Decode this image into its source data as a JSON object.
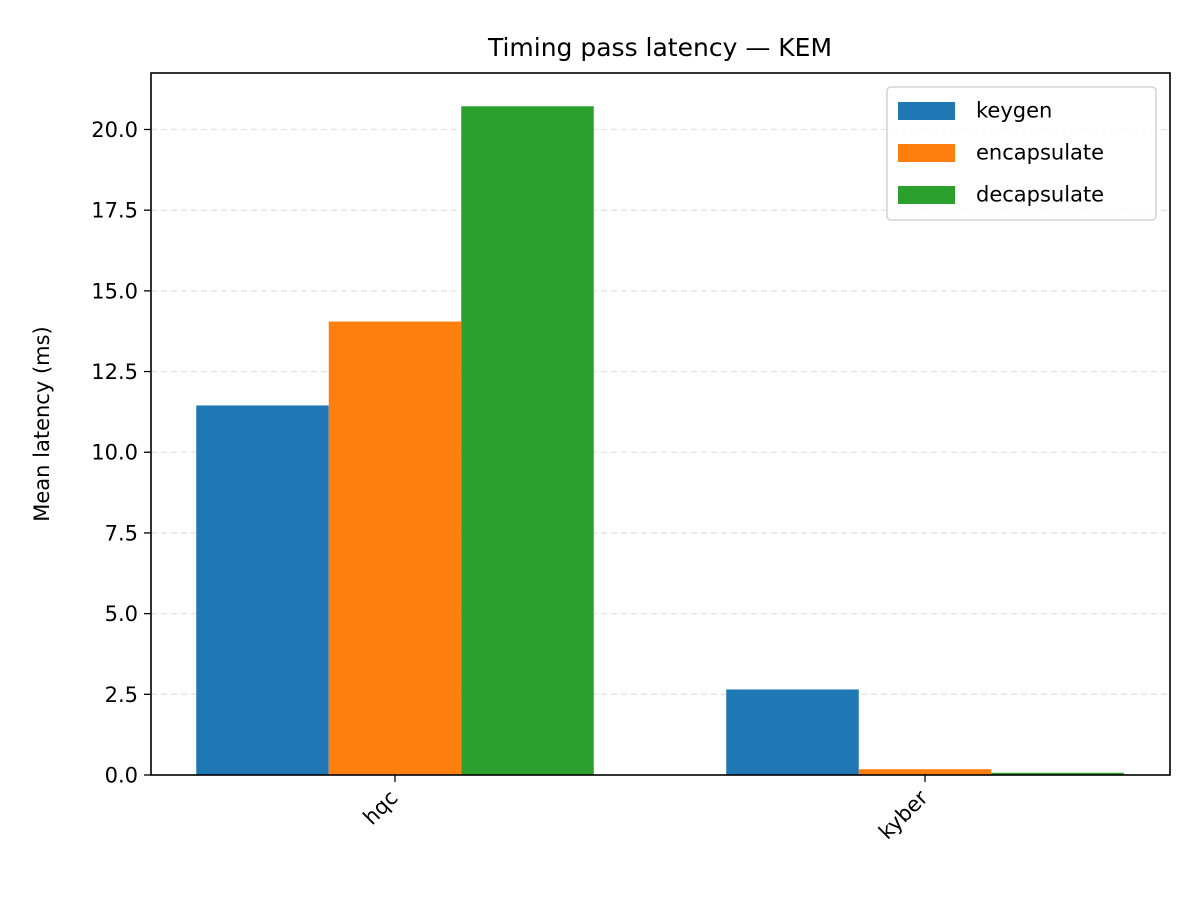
{
  "chart_data": {
    "type": "bar",
    "title": "Timing pass latency — KEM",
    "xlabel": "",
    "ylabel": "Mean latency (ms)",
    "categories": [
      "hqc",
      "kyber"
    ],
    "series": [
      {
        "name": "keygen",
        "color": "#1f77b4",
        "values": [
          11.45,
          2.65
        ]
      },
      {
        "name": "encapsulate",
        "color": "#ff7f0e",
        "values": [
          14.05,
          0.18
        ]
      },
      {
        "name": "decapsulate",
        "color": "#2ca02c",
        "values": [
          20.72,
          0.07
        ]
      }
    ],
    "ylim": [
      0,
      21.75
    ],
    "yticks": [
      "0.0",
      "2.5",
      "5.0",
      "7.5",
      "10.0",
      "12.5",
      "15.0",
      "17.5",
      "20.0"
    ],
    "grid": "horizontal dashed",
    "legend_position": "top-right"
  }
}
